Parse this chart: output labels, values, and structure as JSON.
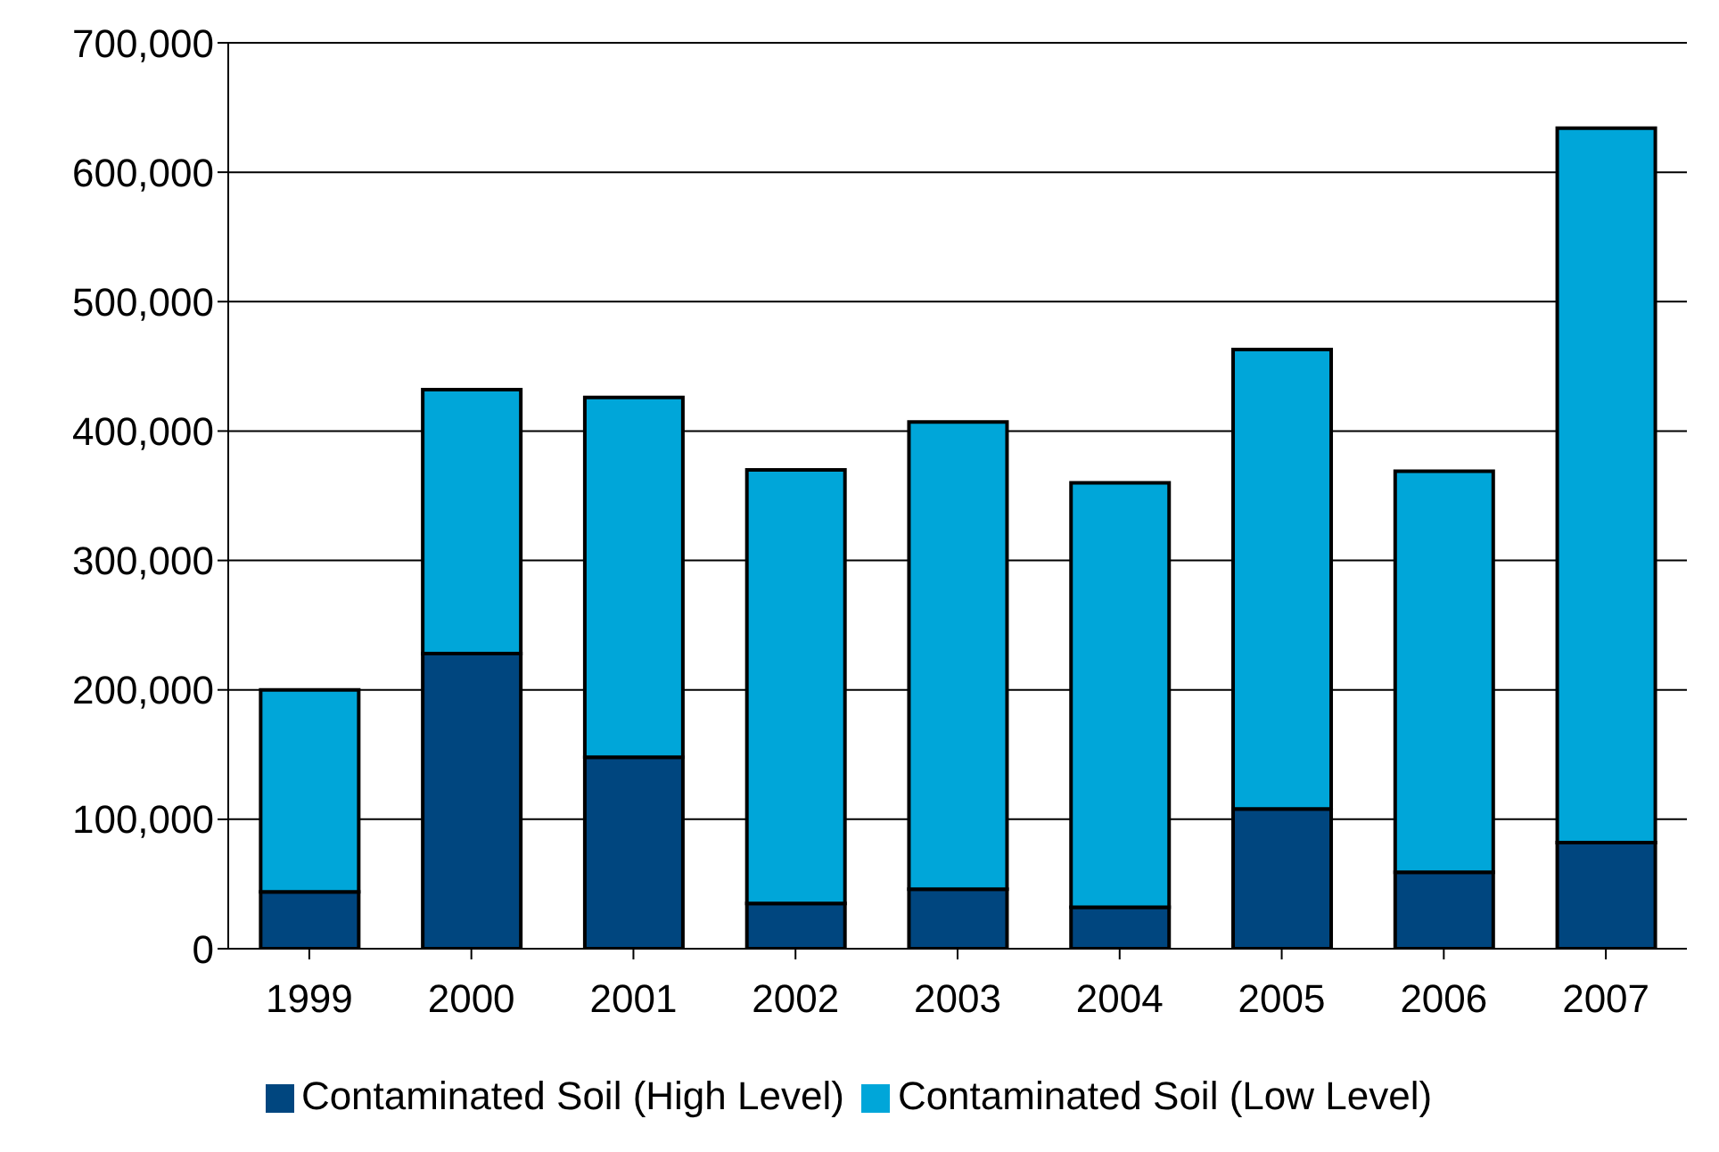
{
  "chart_data": {
    "type": "bar",
    "stacked": true,
    "categories": [
      "1999",
      "2000",
      "2001",
      "2002",
      "2003",
      "2004",
      "2005",
      "2006",
      "2007"
    ],
    "series": [
      {
        "name": "Contaminated Soil (High Level)",
        "color": "#00467f",
        "values": [
          44000,
          228000,
          148000,
          35000,
          46000,
          32000,
          108000,
          59000,
          82000
        ]
      },
      {
        "name": "Contaminated Soil (Low Level)",
        "color": "#00a6d9",
        "values": [
          156000,
          204000,
          278000,
          335000,
          361000,
          328000,
          355000,
          310000,
          552000
        ]
      }
    ],
    "ylim": [
      0,
      700000
    ],
    "yticks": [
      0,
      {
        "value": 100000,
        "label": "100,000"
      },
      {
        "value": 200000,
        "label": "200,000"
      },
      {
        "value": 300000,
        "label": "300,000"
      },
      {
        "value": 400000,
        "label": "400,000"
      },
      {
        "value": 500000,
        "label": "500,000"
      },
      {
        "value": 600000,
        "label": "600,000"
      },
      {
        "value": 700000,
        "label": "700,000"
      }
    ],
    "grid": "y",
    "legend": "bottom"
  }
}
